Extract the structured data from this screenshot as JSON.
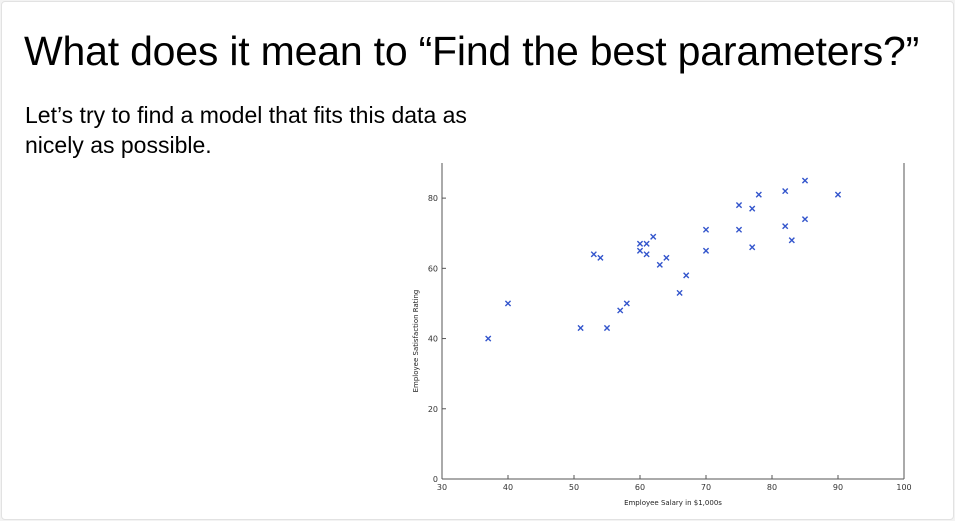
{
  "slide": {
    "title": "What does it mean to “Find the best parameters?”",
    "body": "Let’s try to find a model that fits this data as nicely as possible."
  },
  "chart_data": {
    "type": "scatter",
    "xlabel": "Employee Salary in $1,000s",
    "ylabel": "Employee Satisfaction Rating",
    "xlim": [
      30,
      100
    ],
    "ylim": [
      0,
      90
    ],
    "xticks": [
      30,
      40,
      50,
      60,
      70,
      80,
      90,
      100
    ],
    "yticks": [
      0,
      20,
      40,
      60,
      80
    ],
    "grid": false,
    "marker": "x",
    "color": "#3355cc",
    "series": [
      {
        "points": [
          [
            37,
            40
          ],
          [
            40,
            50
          ],
          [
            51,
            43
          ],
          [
            53,
            64
          ],
          [
            54,
            63
          ],
          [
            55,
            43
          ],
          [
            57,
            48
          ],
          [
            58,
            50
          ],
          [
            60,
            65
          ],
          [
            60,
            67
          ],
          [
            61,
            64
          ],
          [
            61,
            67
          ],
          [
            62,
            69
          ],
          [
            63,
            61
          ],
          [
            64,
            63
          ],
          [
            66,
            53
          ],
          [
            67,
            58
          ],
          [
            70,
            65
          ],
          [
            70,
            71
          ],
          [
            75,
            71
          ],
          [
            75,
            78
          ],
          [
            77,
            66
          ],
          [
            77,
            77
          ],
          [
            78,
            81
          ],
          [
            82,
            72
          ],
          [
            82,
            82
          ],
          [
            83,
            68
          ],
          [
            85,
            74
          ],
          [
            85,
            85
          ],
          [
            90,
            81
          ]
        ]
      }
    ]
  }
}
